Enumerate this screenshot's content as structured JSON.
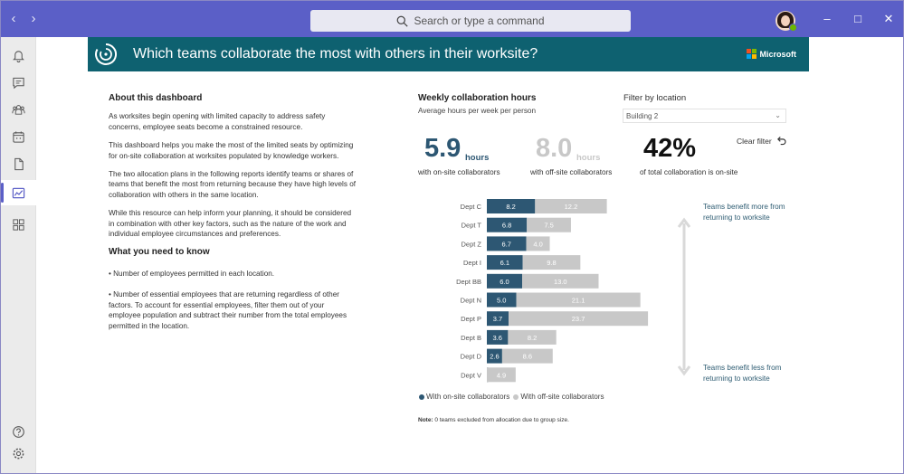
{
  "window": {
    "search_placeholder": "Search or type a command",
    "nav_back": "‹",
    "nav_forward": "›",
    "win_min": "–",
    "win_max": "□",
    "win_close": "✕"
  },
  "banner": {
    "title": "Which teams collaborate the most with others in their worksite?",
    "brand": "Microsoft"
  },
  "about": {
    "heading": "About this dashboard",
    "p1": "As worksites begin opening with limited capacity to address safety concerns, employee seats become a constrained resource.",
    "p2": "This dashboard helps you make the most of the limited seats by optimizing for on-site collaboration at worksites populated by knowledge workers.",
    "p3": "The two allocation plans in the following reports identify teams or shares of teams that benefit the most from returning because they have high levels of collaboration with others in the same location.",
    "p4": "While this resource can help inform your planning, it should be considered in combination with other key factors, such as the nature of the work and individual employee circumstances and preferences.",
    "heading2": "What you need to know",
    "b1": "• Number of employees permitted in each location.",
    "b2": "• Number of essential employees that are returning regardless of other factors. To account for essential employees, filter them out of your employee population and subtract their number from the total employees permitted in the location."
  },
  "chart_header": {
    "title": "Weekly collaboration hours",
    "subtitle": "Average hours per week per person"
  },
  "filter": {
    "label": "Filter by location",
    "selected": "Building 2",
    "clear": "Clear filter"
  },
  "kpis": {
    "onsite_value": "5.9",
    "onsite_unit": "hours",
    "onsite_caption": "with on-site collaborators",
    "offsite_value": "8.0",
    "offsite_unit": "hours",
    "offsite_caption": "with off-site collaborators",
    "pct_value": "42%",
    "pct_caption": "of total collaboration is on-site"
  },
  "chart_data": {
    "type": "bar",
    "orientation": "horizontal",
    "stacked": true,
    "categories": [
      "Dept C",
      "Dept T",
      "Dept Z",
      "Dept I",
      "Dept BB",
      "Dept N",
      "Dept P",
      "Dept B",
      "Dept D",
      "Dept V"
    ],
    "series": [
      {
        "name": "With on-site collaborators",
        "values": [
          8.2,
          6.8,
          6.7,
          6.1,
          6.0,
          5.0,
          3.7,
          3.6,
          2.6,
          0.0
        ],
        "color": "#2d5773"
      },
      {
        "name": "With off-site collaborators",
        "values": [
          12.2,
          7.5,
          4.0,
          9.8,
          13.0,
          21.1,
          23.7,
          8.2,
          8.6,
          4.9
        ],
        "color": "#c8c8c8"
      }
    ],
    "legend_position": "bottom-left"
  },
  "annotations": {
    "top": "Teams benefit more from returning to worksite",
    "bottom": "Teams benefit less from returning to worksite"
  },
  "note": {
    "label": "Note:",
    "text": " 0 teams excluded from allocation due to group size."
  },
  "colors": {
    "titlebar": "#5b5fc7",
    "banner": "#0e6170",
    "onsite": "#2d5773",
    "offsite": "#c8c8c8"
  }
}
